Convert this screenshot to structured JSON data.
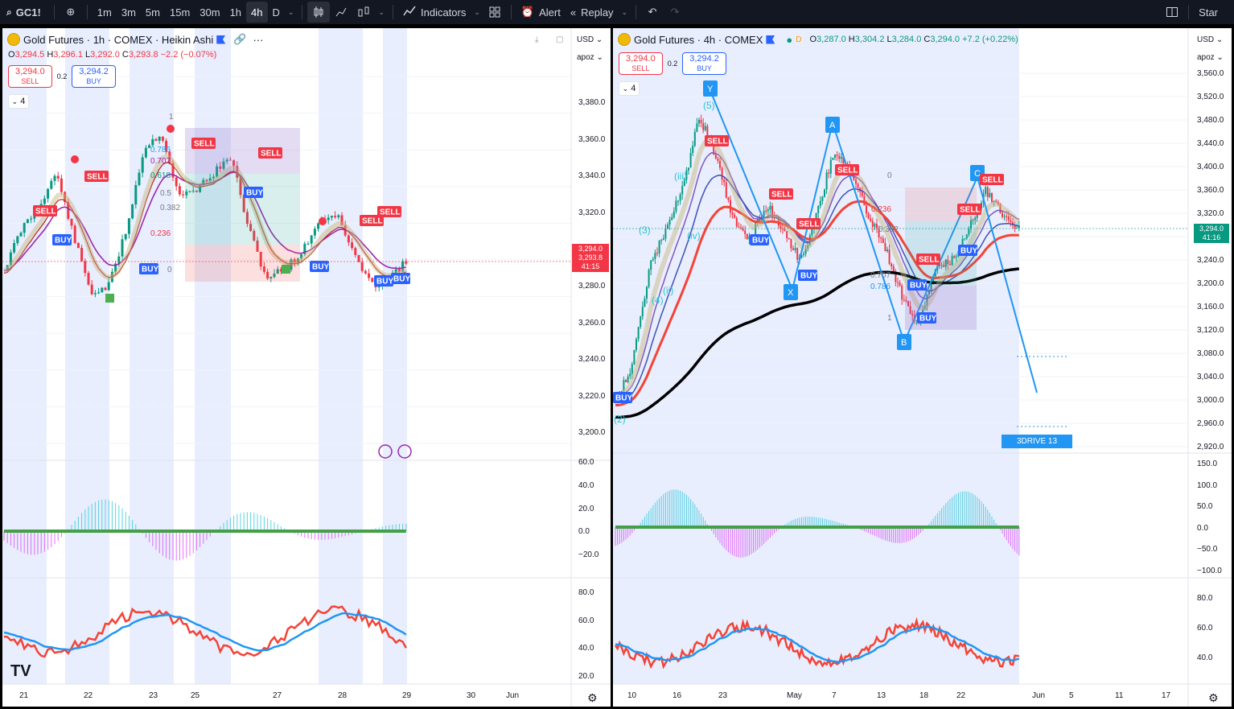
{
  "topbar": {
    "symbol": "GC1!",
    "intervals": [
      "1m",
      "3m",
      "5m",
      "15m",
      "30m",
      "1h",
      "4h",
      "D"
    ],
    "active_interval": "4h",
    "indicators_label": "Indicators",
    "alert_label": "Alert",
    "replay_label": "Replay",
    "star_label": "Star"
  },
  "left": {
    "title": "Gold Futures · 1h · COMEX · Heikin Ashi",
    "ohlc": {
      "o": "3,294.5",
      "h": "3,296.1",
      "l": "3,292.0",
      "c": "3,293.8",
      "chg": "−2.2 (−0.07%)"
    },
    "sell_price": "3,294.0",
    "sell_label": "SELL",
    "buy_price": "3,294.2",
    "buy_label": "BUY",
    "spread": "0.2",
    "collapse_count": "4",
    "currency": "USD",
    "scale_mode": "apoz",
    "price_axis": [
      "3,380.0",
      "3,360.0",
      "3,340.0",
      "3,320.0",
      "3,300.0",
      "3,280.0",
      "3,260.0",
      "3,240.0",
      "3,220.0",
      "3,200.0"
    ],
    "price_tag_1": "3,294.0",
    "price_tag_2": "3,293.8",
    "price_tag_time": "41:15",
    "osc_axis": [
      "60.0",
      "40.0",
      "20.0",
      "0.0",
      "−20.0"
    ],
    "rsi_axis": [
      "80.0",
      "60.0",
      "40.0",
      "20.0"
    ],
    "time_axis": [
      "21",
      "22",
      "23",
      "25",
      "27",
      "28",
      "29",
      "30",
      "Jun"
    ],
    "fib_labels": [
      "1",
      "0.786",
      "0.707",
      "0.618",
      "0.5",
      "0.382",
      "0.236",
      "0"
    ],
    "signals": {
      "sell": "SELL",
      "buy": "BUY"
    }
  },
  "right": {
    "title": "Gold Futures · 4h · COMEX",
    "ohlc": {
      "o": "3,287.0",
      "h": "3,304.2",
      "l": "3,284.0",
      "c": "3,294.0",
      "chg": "+7.2 (+0.22%)"
    },
    "sell_price": "3,294.0",
    "sell_label": "SELL",
    "buy_price": "3,294.2",
    "buy_label": "BUY",
    "spread": "0.2",
    "collapse_count": "4",
    "currency": "USD",
    "scale_mode": "apoz",
    "price_axis": [
      "3,560.0",
      "3,520.0",
      "3,480.0",
      "3,440.0",
      "3,400.0",
      "3,360.0",
      "3,320.0",
      "3,280.0",
      "3,240.0",
      "3,200.0",
      "3,160.0",
      "3,120.0",
      "3,080.0",
      "3,040.0",
      "3,000.0",
      "2,960.0",
      "2,920.0"
    ],
    "price_tag": "3,294.0",
    "price_tag_time": "41:16",
    "osc_axis": [
      "150.0",
      "100.0",
      "50.0",
      "0.0",
      "−50.0",
      "−100.0"
    ],
    "rsi_axis": [
      "80.0",
      "60.0",
      "40.0"
    ],
    "time_axis": [
      "10",
      "16",
      "23",
      "May",
      "7",
      "13",
      "18",
      "22",
      "Jun",
      "5",
      "11",
      "17"
    ],
    "pattern_label": "3DRIVE 13",
    "waves": [
      "(5)",
      "(iii)",
      "(3)",
      "(iv)",
      "(ii)",
      "(4)",
      "(2)",
      "Y",
      "A",
      "B",
      "C",
      "X"
    ],
    "fib_labels": [
      "0",
      "0.236",
      "0.382",
      "0.707",
      "0.786",
      "1"
    ]
  },
  "colors": {
    "sell": "#f23645",
    "buy": "#2962ff",
    "bull": "#089981",
    "bear": "#f23645",
    "teal_hist": "#26c6da",
    "magenta_hist": "#e040fb",
    "shade": "#e8eefd"
  }
}
